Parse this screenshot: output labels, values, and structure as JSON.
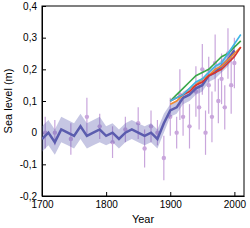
{
  "chart_data": {
    "type": "line",
    "x_label": "Year",
    "y_label": "Sea level (m)",
    "xlim": [
      1700,
      2015
    ],
    "xticks": [
      1700,
      1800,
      1900,
      2000
    ],
    "ylim": [
      -0.2,
      0.4
    ],
    "yticks": [
      {
        "value": -0.2,
        "label": "-0,2"
      },
      {
        "value": -0.1,
        "label": "-0,1"
      },
      0,
      {
        "value": 0.1,
        "label": "0,1"
      },
      {
        "value": 0.2,
        "label": "0,2"
      },
      {
        "value": 0.3,
        "label": "0,3"
      },
      {
        "value": 0.4,
        "label": "0,4"
      }
    ],
    "series": [
      {
        "type": "scatter",
        "color": "#c9a6dc",
        "marker": "circle",
        "x": [
          1705,
          1720,
          1745,
          1770,
          1790,
          1810,
          1830,
          1850,
          1860,
          1870,
          1880,
          1890,
          1900,
          1910,
          1915,
          1920,
          1930,
          1940,
          1945,
          1950,
          1955,
          1960,
          1965,
          1970,
          1975,
          1980,
          1985,
          1990,
          1995,
          2000
        ],
        "values": [
          0.0,
          0.0,
          -0.02,
          0.05,
          0.02,
          -0.03,
          0.01,
          0.03,
          -0.05,
          0.02,
          0.0,
          -0.08,
          0.05,
          0.0,
          0.12,
          0.05,
          0.02,
          0.13,
          0.08,
          0.2,
          0.0,
          0.15,
          0.05,
          0.22,
          0.1,
          0.17,
          0.08,
          0.25,
          0.15,
          0.22
        ],
        "error": [
          0.05,
          0.04,
          0.05,
          0.06,
          0.04,
          0.05,
          0.04,
          0.05,
          0.06,
          0.05,
          0.04,
          0.07,
          0.06,
          0.05,
          0.08,
          0.06,
          0.07,
          0.08,
          0.07,
          0.08,
          0.07,
          0.09,
          0.08,
          0.09,
          0.07,
          0.08,
          0.07,
          0.08,
          0.09,
          0.08
        ]
      },
      {
        "type": "line",
        "color": "#5b5cae",
        "x": [
          1700,
          1710,
          1720,
          1730,
          1740,
          1750,
          1760,
          1770,
          1780,
          1790,
          1800,
          1810,
          1820,
          1830,
          1840,
          1850,
          1860,
          1870,
          1880,
          1890,
          1900,
          1910,
          1920,
          1930,
          1940,
          1950,
          1960,
          1970,
          1980,
          1990,
          2000
        ],
        "values": [
          -0.02,
          0.0,
          -0.03,
          0.01,
          0.0,
          -0.01,
          0.02,
          -0.01,
          0.0,
          0.01,
          -0.01,
          0.0,
          -0.02,
          0.0,
          0.01,
          0.0,
          -0.01,
          0.0,
          -0.02,
          0.03,
          0.07,
          0.08,
          0.11,
          0.12,
          0.14,
          0.15,
          0.18,
          0.19,
          0.21,
          0.23,
          0.26
        ],
        "error": [
          0.04,
          0.04,
          0.04,
          0.04,
          0.04,
          0.04,
          0.04,
          0.04,
          0.04,
          0.04,
          0.03,
          0.03,
          0.03,
          0.03,
          0.03,
          0.03,
          0.03,
          0.03,
          0.03,
          0.03,
          0.02,
          0.02,
          0.02,
          0.02,
          0.02,
          0.02,
          0.02,
          0.02,
          0.02,
          0.02,
          0.02
        ]
      },
      {
        "type": "line",
        "color": "#3aa84a",
        "x": [
          1900,
          1910,
          1920,
          1930,
          1940,
          1950,
          1960,
          1970,
          1980,
          1990,
          2000,
          2010
        ],
        "values": [
          0.1,
          0.12,
          0.14,
          0.16,
          0.18,
          0.19,
          0.2,
          0.22,
          0.24,
          0.25,
          0.27,
          0.29
        ]
      },
      {
        "type": "line",
        "color": "#f08a30",
        "x": [
          1900,
          1910,
          1920,
          1930,
          1940,
          1950,
          1960,
          1970,
          1980,
          1990,
          2000,
          2010
        ],
        "values": [
          0.09,
          0.1,
          0.12,
          0.14,
          0.15,
          0.17,
          0.18,
          0.2,
          0.21,
          0.23,
          0.25,
          0.27
        ]
      },
      {
        "type": "line",
        "color": "#d8342c",
        "x": [
          1900,
          1910,
          1920,
          1930,
          1940,
          1950,
          1960,
          1970,
          1980,
          1990,
          2000,
          2010
        ],
        "values": [
          0.1,
          0.11,
          0.12,
          0.13,
          0.15,
          0.16,
          0.18,
          0.19,
          0.2,
          0.22,
          0.24,
          0.27
        ]
      },
      {
        "type": "line",
        "color": "#3fb6e6",
        "x": [
          1900,
          1910,
          1920,
          1930,
          1940,
          1950,
          1960,
          1970,
          1980,
          1990,
          2000,
          2010
        ],
        "values": [
          0.1,
          0.11,
          0.12,
          0.14,
          0.16,
          0.17,
          0.19,
          0.21,
          0.22,
          0.25,
          0.28,
          0.31
        ]
      }
    ]
  }
}
